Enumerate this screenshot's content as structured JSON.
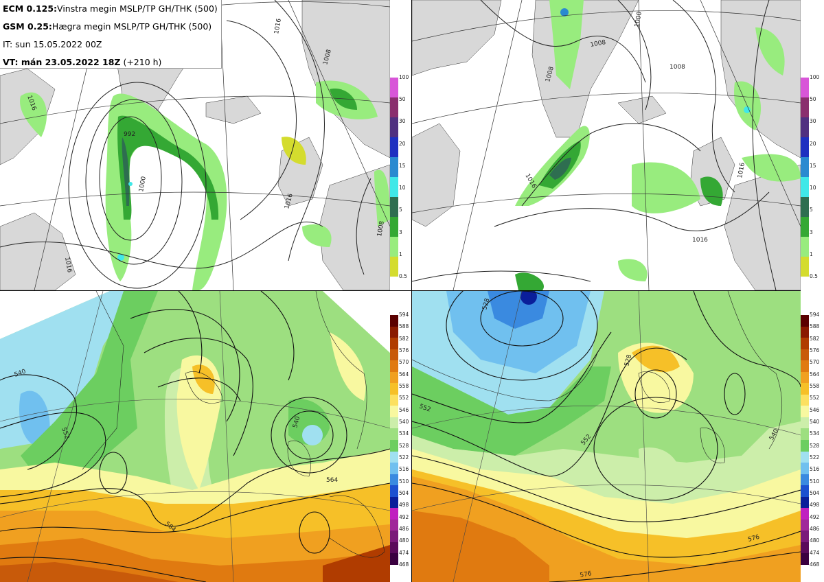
{
  "info": {
    "ecm_label": "ECM 0.125:",
    "ecm_text": "Vinstra megin MSLP/TP GH/THK (500)",
    "gsm_label": "GSM 0.25:",
    "gsm_text": "Hægra megin MSLP/TP GH/THK (500)",
    "it_text": "IT: sun 15.05.2022 00Z",
    "vt_label": "VT: mán 23.05.2022 18Z",
    "vt_text": "(+210 h)"
  },
  "precip_colorbar": {
    "ticks": [
      "100",
      "50",
      "30",
      "20",
      "15",
      "10",
      "5",
      "3",
      "1",
      "0.5"
    ],
    "colors": [
      "#d856d8",
      "#8a2e6e",
      "#503080",
      "#1e30c0",
      "#2a8ad0",
      "#40e8e8",
      "#2e6e50",
      "#34a834",
      "#98ec7e",
      "#d4dc2e"
    ]
  },
  "thk_colorbar": {
    "ticks": [
      "594",
      "588",
      "582",
      "576",
      "570",
      "564",
      "558",
      "552",
      "546",
      "540",
      "534",
      "528",
      "522",
      "516",
      "510",
      "504",
      "498",
      "492",
      "486",
      "480",
      "474",
      "468"
    ],
    "colors": [
      "#5a0000",
      "#8a1a00",
      "#b03c00",
      "#c85a0a",
      "#e07a10",
      "#f0a020",
      "#f6c028",
      "#fce060",
      "#f8f8a0",
      "#cceeaa",
      "#9ddf80",
      "#6cce60",
      "#a0e0f0",
      "#70c0ef",
      "#3a8ae0",
      "#1c50d0",
      "#0a1e9a",
      "#c020c0",
      "#a0289a",
      "#7a1a7a",
      "#5a0a5a",
      "#3a0040"
    ]
  },
  "contour_labels": {
    "tl": [
      "1016",
      "1008",
      "1000",
      "1016",
      "1016",
      "1008",
      "1016",
      "992"
    ],
    "tr": [
      "1000",
      "1008",
      "1008",
      "1016",
      "1016",
      "1016",
      "1008"
    ],
    "bl": [
      "540",
      "564",
      "564",
      "540",
      "552"
    ],
    "br": [
      "528",
      "552",
      "552",
      "576",
      "576",
      "528",
      "540"
    ]
  },
  "colors": {
    "land": "#d8d8d8",
    "ocean": "#ffffff",
    "contour": "#222222"
  }
}
